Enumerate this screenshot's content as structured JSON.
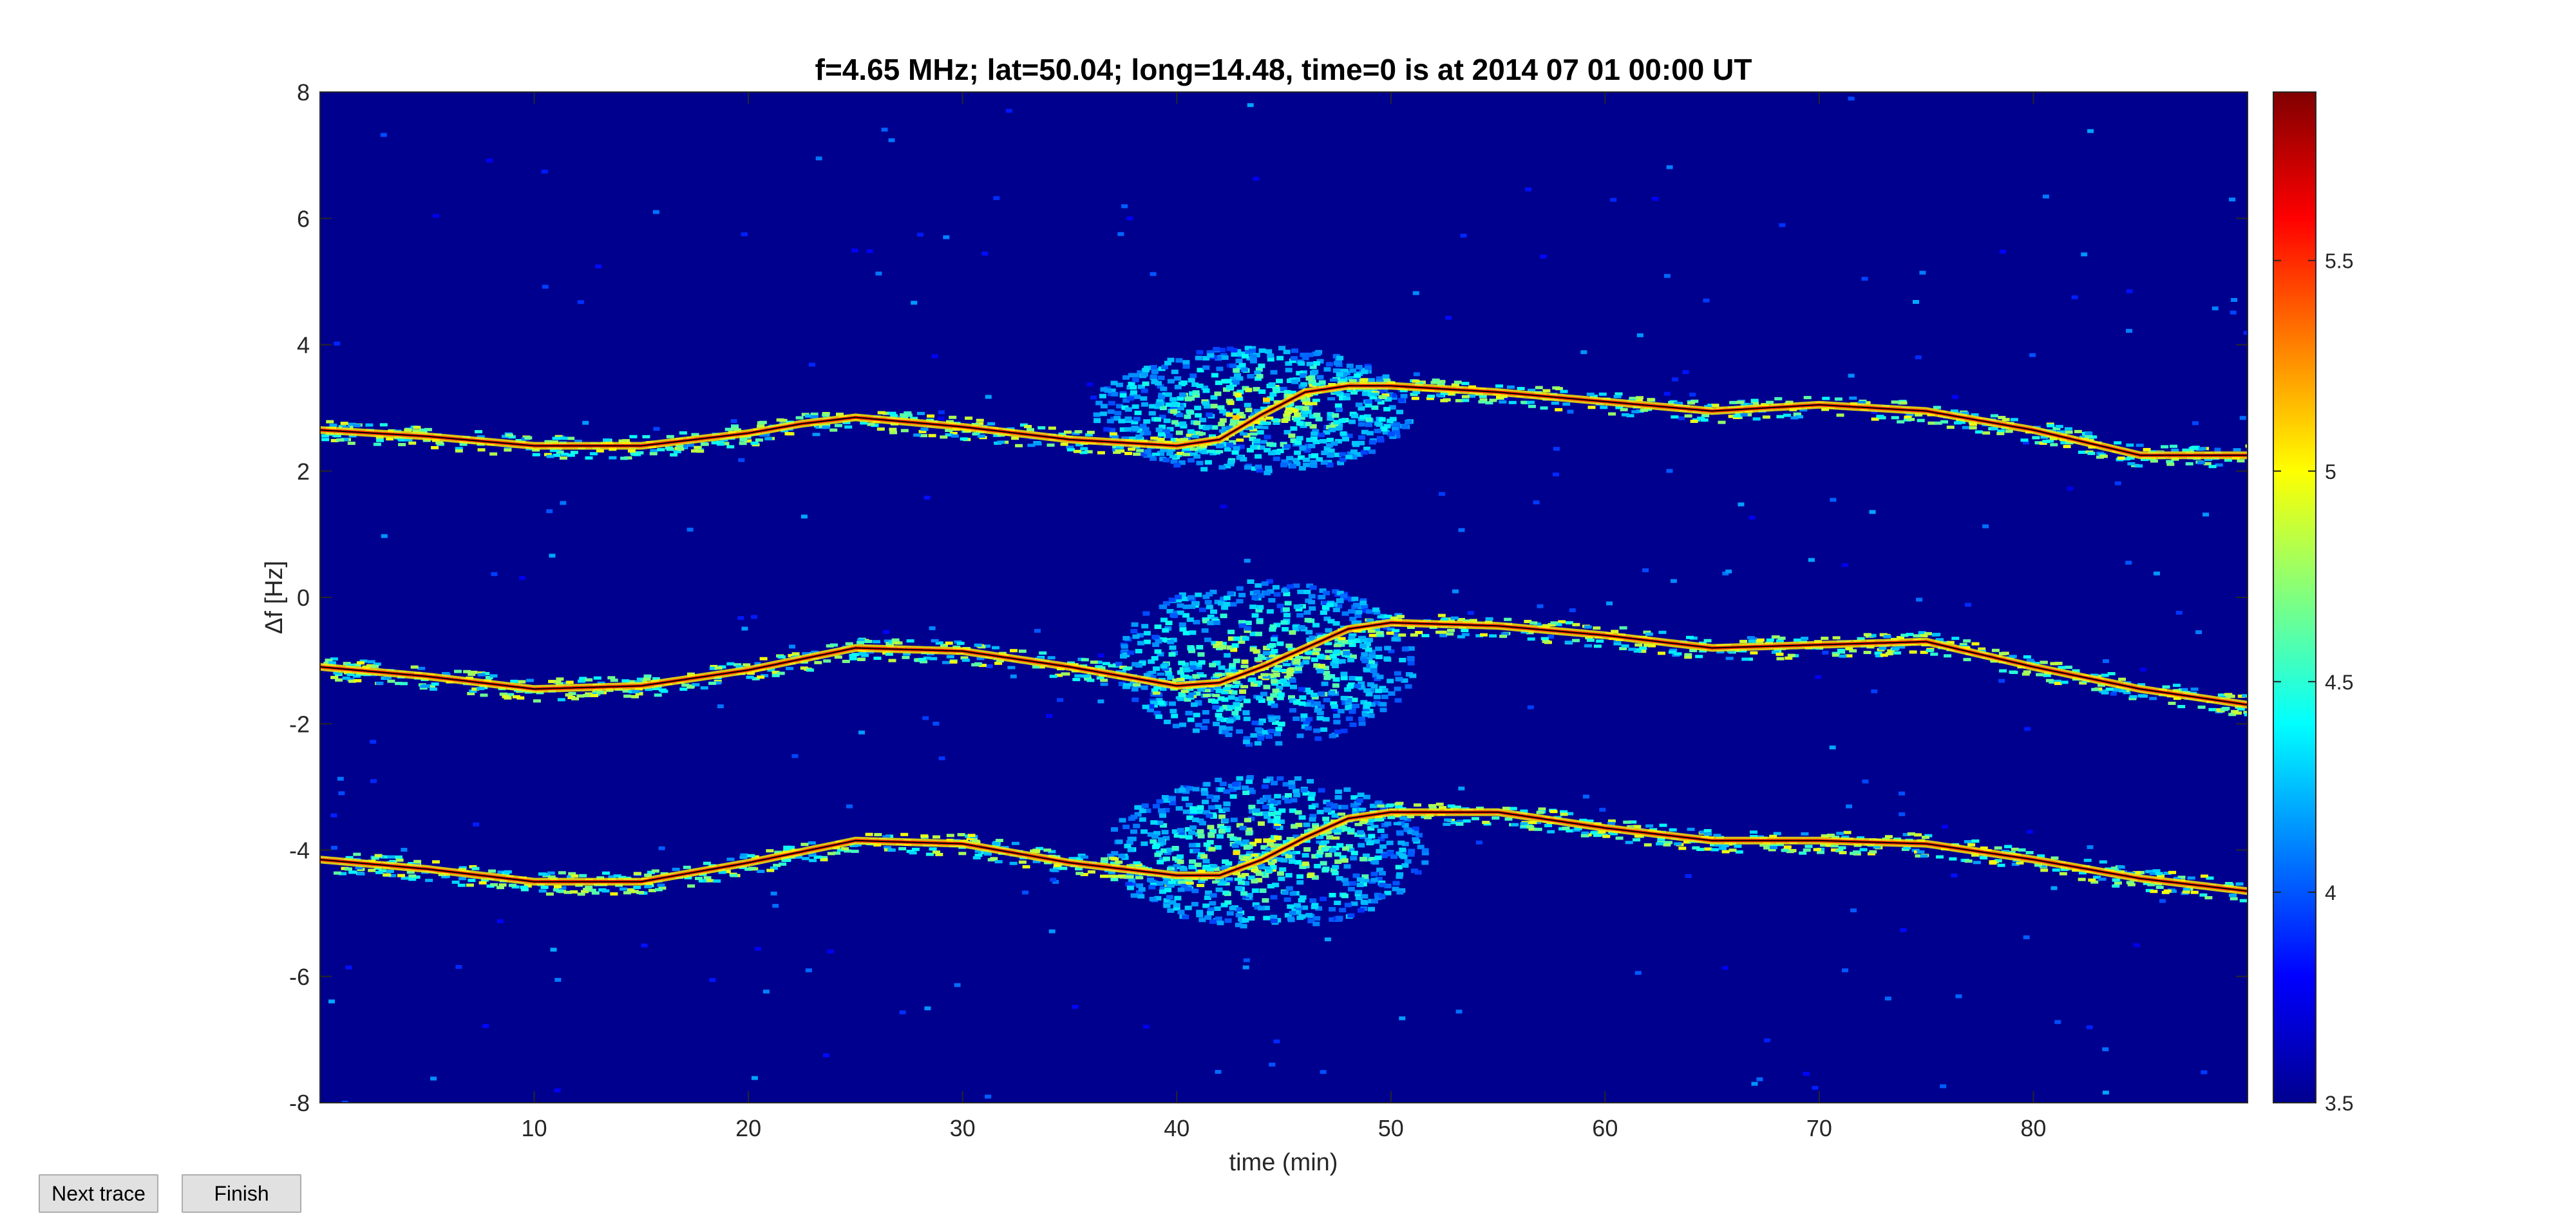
{
  "buttons": {
    "next_trace": "Next trace",
    "finish": "Finish"
  },
  "chart_data": {
    "type": "heatmap",
    "title": "f=4.65 MHz;  lat=50.04; long=14.48, time=0 is at 2014 07 01 00:00 UT",
    "xlabel": "time (min)",
    "ylabel": "Δf [Hz]",
    "xlim": [
      0,
      90
    ],
    "ylim": [
      -8,
      8
    ],
    "x_ticks": [
      10,
      20,
      30,
      40,
      50,
      60,
      70,
      80
    ],
    "y_ticks": [
      -8,
      -6,
      -4,
      -2,
      0,
      2,
      4,
      6,
      8
    ],
    "colorbar": {
      "colormap": "jet",
      "limits": [
        3.5,
        5.9
      ],
      "ticks": [
        3.5,
        4,
        4.5,
        5,
        5.5
      ],
      "tick_labels": [
        "3.5",
        "4",
        "4.5",
        "5",
        "5.5"
      ]
    },
    "background_color": "#00008f",
    "grid": false,
    "traces": [
      {
        "time": [
          0,
          5,
          10,
          15,
          20,
          22.5,
          25,
          30,
          35,
          40,
          42,
          44,
          46,
          48,
          50,
          55,
          60,
          65,
          70,
          75,
          80,
          85,
          90
        ],
        "df": [
          2.65,
          2.55,
          2.4,
          2.4,
          2.6,
          2.75,
          2.85,
          2.7,
          2.5,
          2.4,
          2.5,
          2.9,
          3.25,
          3.35,
          3.35,
          3.25,
          3.1,
          2.95,
          3.05,
          2.95,
          2.65,
          2.25,
          2.25
        ]
      },
      {
        "time": [
          0,
          5,
          10,
          15,
          20,
          25,
          30,
          35,
          40,
          42,
          44,
          46,
          48,
          50,
          55,
          60,
          65,
          70,
          75,
          80,
          85,
          90
        ],
        "df": [
          -1.1,
          -1.25,
          -1.45,
          -1.4,
          -1.15,
          -0.8,
          -0.85,
          -1.1,
          -1.4,
          -1.35,
          -1.1,
          -0.8,
          -0.5,
          -0.4,
          -0.45,
          -0.6,
          -0.8,
          -0.75,
          -0.7,
          -1.1,
          -1.45,
          -1.7
        ]
      },
      {
        "time": [
          0,
          5,
          10,
          15,
          20,
          25,
          30,
          35,
          40,
          42,
          44,
          46,
          48,
          50,
          55,
          60,
          65,
          70,
          75,
          80,
          85,
          90
        ],
        "df": [
          -4.15,
          -4.3,
          -4.5,
          -4.5,
          -4.2,
          -3.85,
          -3.9,
          -4.2,
          -4.4,
          -4.4,
          -4.15,
          -3.8,
          -3.5,
          -3.4,
          -3.4,
          -3.65,
          -3.85,
          -3.85,
          -3.9,
          -4.15,
          -4.45,
          -4.65
        ]
      }
    ],
    "blobs": [
      {
        "time_center": 43.5,
        "df_center": 3.0,
        "time_halfwidth": 7.5,
        "df_halfwidth": 1.0
      },
      {
        "time_center": 44.0,
        "df_center": -1.0,
        "time_halfwidth": 7.0,
        "df_halfwidth": 1.3
      },
      {
        "time_center": 44.0,
        "df_center": -4.0,
        "time_halfwidth": 7.5,
        "df_halfwidth": 1.2
      }
    ]
  }
}
